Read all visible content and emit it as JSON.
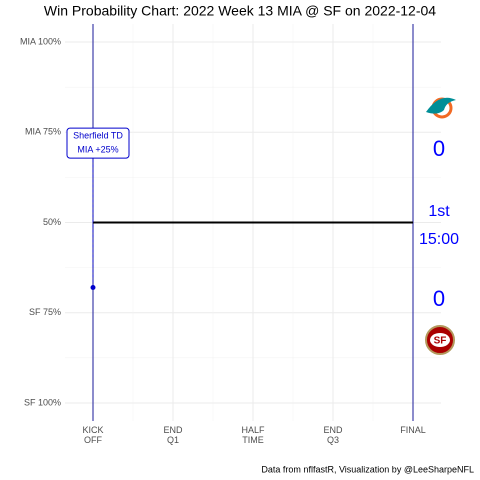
{
  "chart_data": {
    "type": "line",
    "title": "Win Probability Chart: 2022 Week 13 MIA @ SF on 2022-12-04",
    "caption": "Data from nflfastR, Visualization by @LeeSharpeNFL",
    "xlim": [
      -315,
      3915
    ],
    "xticks": [
      {
        "value": 0,
        "label": "KICK\nOFF"
      },
      {
        "value": 900,
        "label": "END\nQ1"
      },
      {
        "value": 1800,
        "label": "HALF\nTIME"
      },
      {
        "value": 2700,
        "label": "END\nQ3"
      },
      {
        "value": 3600,
        "label": "FINAL"
      }
    ],
    "ylim": [
      -5,
      105
    ],
    "yticks": [
      {
        "value": 100,
        "label": "MIA 100%"
      },
      {
        "value": 75,
        "label": "MIA 75%"
      },
      {
        "value": 50,
        "label": "50%"
      },
      {
        "value": 25,
        "label": "SF 75%"
      },
      {
        "value": 0,
        "label": "SF 100%"
      }
    ],
    "grid": true,
    "boundary_color": "#1a1a99",
    "series": [
      {
        "color": "#000000",
        "x": [
          0,
          3600
        ],
        "values": [
          50,
          50
        ]
      }
    ],
    "highlight": {
      "x": 0,
      "value": 32,
      "color": "#0000cc",
      "label_y": 72,
      "text": [
        "Sherfield TD",
        "MIA +25%"
      ]
    },
    "scoreboard": {
      "away_score": "0",
      "quarter": "1st",
      "clock": "15:00",
      "home_score": "0",
      "color": "#0000ff"
    }
  }
}
